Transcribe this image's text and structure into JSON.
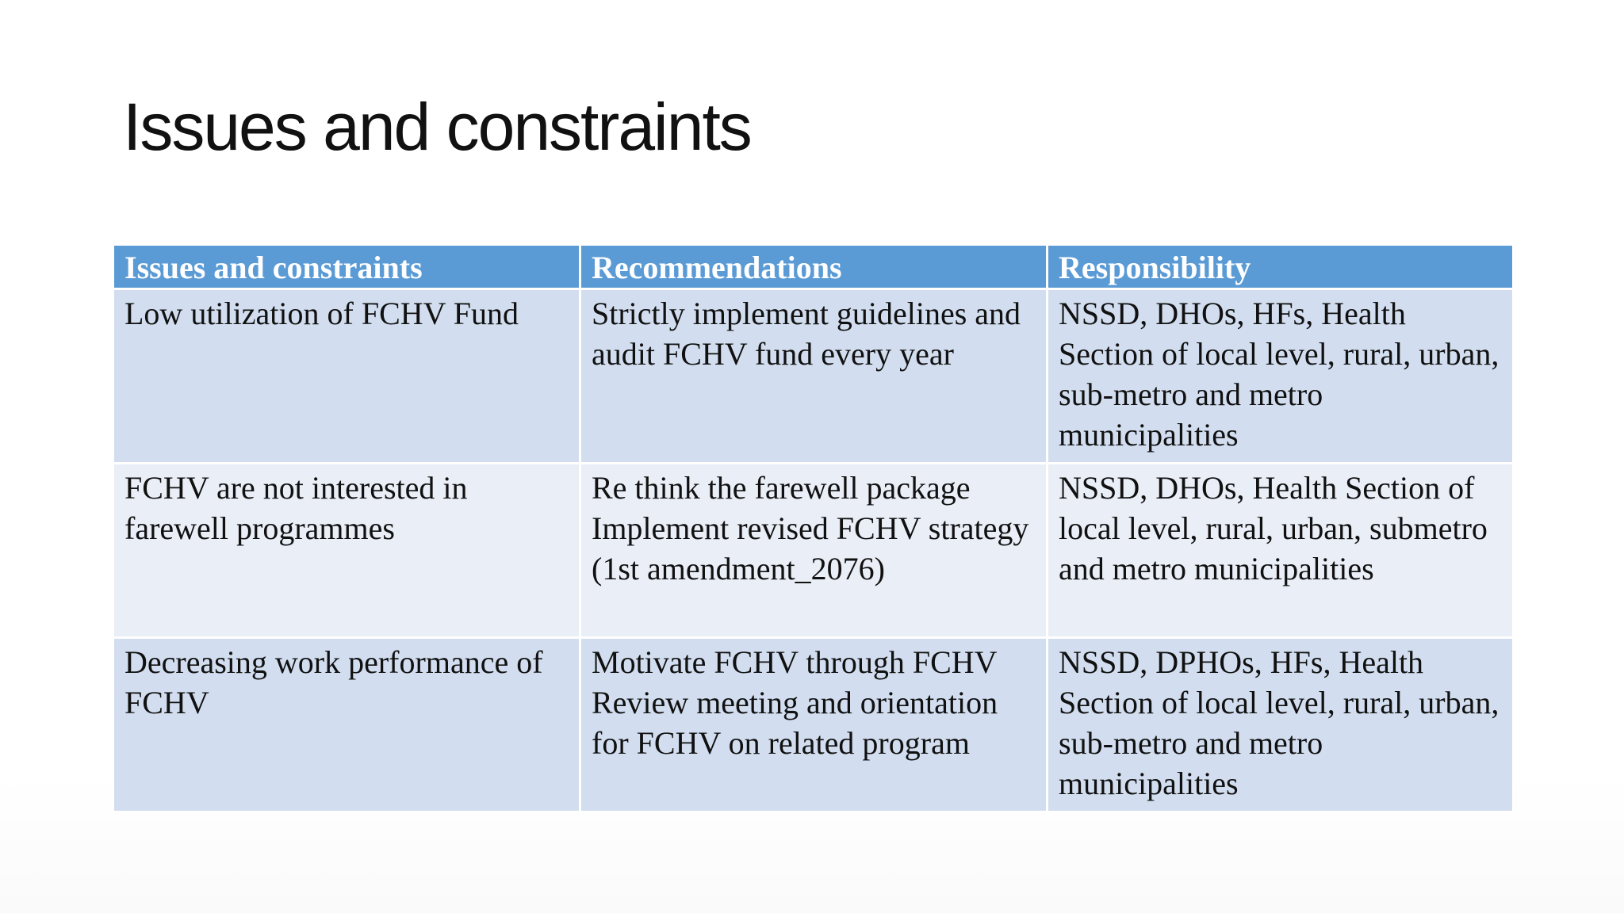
{
  "slide": {
    "title": "Issues and constraints"
  },
  "table": {
    "headers": [
      "Issues and constraints",
      "Recommendations",
      "Responsibility"
    ],
    "rows": [
      [
        "Low utilization of FCHV Fund",
        "Strictly implement guidelines and audit FCHV fund every year",
        "NSSD, DHOs, HFs, Health Section of local level, rural, urban, sub-metro and metro municipalities"
      ],
      [
        "FCHV are not interested in farewell programmes",
        "Re think the farewell package Implement revised FCHV strategy (1st amendment_2076)",
        "NSSD, DHOs, Health Section of local level, rural, urban, submetro and metro municipalities"
      ],
      [
        "Decreasing work performance of FCHV",
        "Motivate FCHV through FCHV Review meeting and orientation for FCHV on related program",
        "NSSD, DPHOs, HFs, Health Section of local level, rural, urban, sub-metro and metro municipalities"
      ]
    ]
  },
  "colors": {
    "header_background": "#5b9bd5",
    "row_band_dark": "#d2deef",
    "row_band_light": "#e9eef7",
    "header_text": "#ffffff",
    "body_text": "#111111"
  }
}
